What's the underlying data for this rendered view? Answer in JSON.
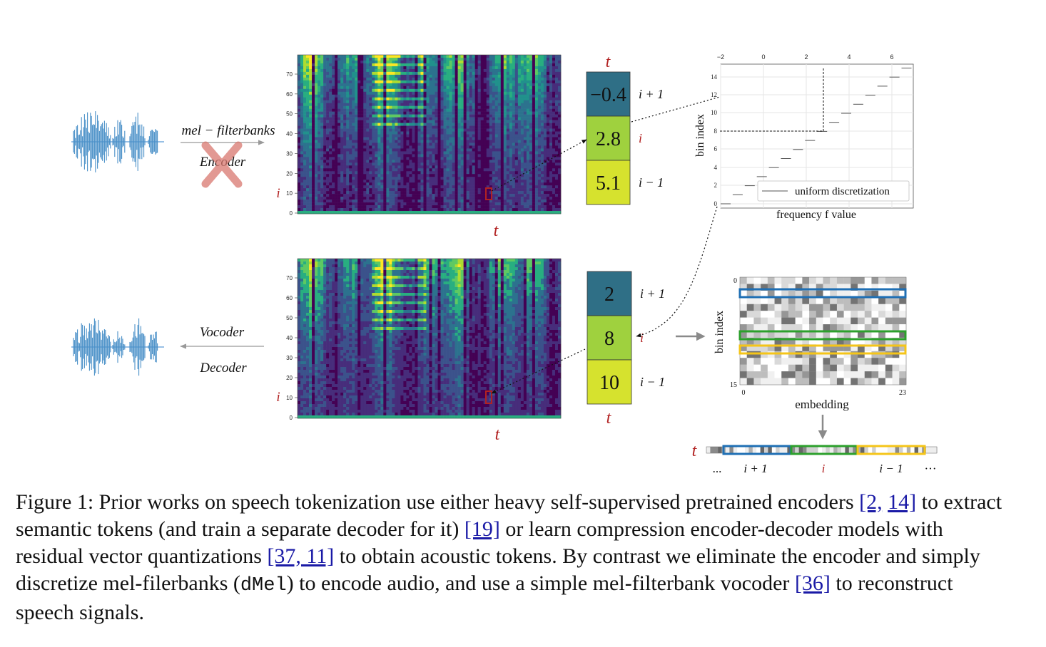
{
  "top_row": {
    "arrow_label_top": "mel − filterbanks",
    "arrow_label_bottom": "Encoder",
    "spectrogram": {
      "y_ticks": [
        "70",
        "60",
        "50",
        "40",
        "30",
        "20",
        "10",
        "0"
      ],
      "row_marker": "i",
      "time_label": "t"
    },
    "token_column": {
      "time_label": "t",
      "values": [
        "−0.4",
        "2.8",
        "5.1"
      ],
      "row_labels": [
        "i + 1",
        "i",
        "i − 1"
      ],
      "colors": [
        "#2f6f86",
        "#9fd13e",
        "#d6e22e"
      ]
    }
  },
  "bottom_row": {
    "arrow_label_top": "Vocoder",
    "arrow_label_bottom": "Decoder",
    "spectrogram": {
      "y_ticks": [
        "70",
        "60",
        "50",
        "40",
        "30",
        "20",
        "10",
        "0"
      ],
      "row_marker": "i",
      "time_label": "t"
    },
    "token_column": {
      "time_label": "t",
      "values": [
        "2",
        "8",
        "10"
      ],
      "row_labels": [
        "i + 1",
        "i",
        "i − 1"
      ],
      "colors": [
        "#2f6f86",
        "#9fd13e",
        "#d6e22e"
      ]
    }
  },
  "discretization_plot": {
    "x_ticks": [
      "−2",
      "0",
      "2",
      "4",
      "6"
    ],
    "y_ticks": [
      "14",
      "12",
      "10",
      "8",
      "6",
      "4",
      "2",
      "0"
    ],
    "xlabel": "frequency f value",
    "ylabel": "bin index",
    "legend": "uniform discretization"
  },
  "embedding_plot": {
    "ylabel": "bin index",
    "xlabel": "embedding",
    "y_ticks": [
      "0",
      "15"
    ],
    "x_ticks": [
      "0",
      "23"
    ],
    "highlight_colors": [
      "#1f6fb4",
      "#2ca02c",
      "#f5c518"
    ]
  },
  "sequence_row": {
    "time_label": "t",
    "labels": [
      "...",
      "i + 1",
      "i",
      "i − 1",
      "···"
    ]
  },
  "caption": {
    "p1": "Figure 1: Prior works on speech tokenization use either heavy self-supervised pretrained encoders ",
    "r1": "[2,",
    "r1b": "14]",
    "p2": " to extract semantic tokens (and train a separate decoder for it) ",
    "r2": "[19]",
    "p3": " or learn compression encoder-decoder models with residual vector quantizations ",
    "r3": "[37, 11]",
    "p4": " to obtain acoustic tokens. By contrast we eliminate the encoder and simply discretize mel-filerbanks (",
    "code": "dMel",
    "p5": ") to encode audio, and use a simple mel-filterbank vocoder ",
    "r4": "[36]",
    "p6": " to reconstruct speech signals."
  }
}
